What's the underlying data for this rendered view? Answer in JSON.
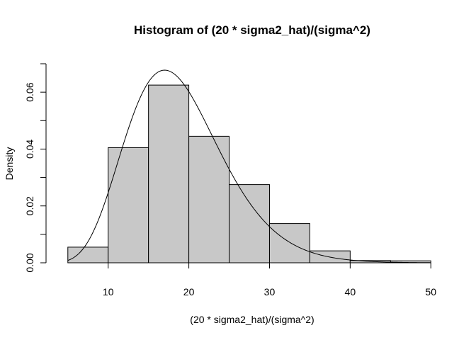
{
  "chart_data": {
    "type": "bar",
    "title": "Histogram of (20 * sigma2_hat)/(sigma^2)",
    "xlabel": "(20 * sigma2_hat)/(sigma^2)",
    "ylabel": "Density",
    "bin_edges": [
      5,
      10,
      15,
      20,
      25,
      30,
      35,
      40,
      45,
      50
    ],
    "values": [
      0.0055,
      0.0405,
      0.0625,
      0.0445,
      0.0275,
      0.0138,
      0.0042,
      0.0008,
      0.0007
    ],
    "xlim": [
      3,
      52
    ],
    "ylim": [
      0,
      0.07
    ],
    "x_ticks": [
      10,
      20,
      30,
      40,
      50
    ],
    "x_tick_labels": [
      "10",
      "20",
      "30",
      "40",
      "50"
    ],
    "y_ticks": [
      0,
      0.01,
      0.02,
      0.03,
      0.04,
      0.05,
      0.06,
      0.07
    ],
    "y_tick_labels": [
      "0.00",
      "",
      "0.02",
      "",
      "0.04",
      "",
      "0.06",
      ""
    ],
    "overlay": {
      "type": "line",
      "distribution": "chi-square",
      "df": 19,
      "x_range": [
        5,
        50
      ]
    },
    "grid": false,
    "legend": "none",
    "bar_color": "#c8c8c8",
    "line_color": "#000000"
  }
}
